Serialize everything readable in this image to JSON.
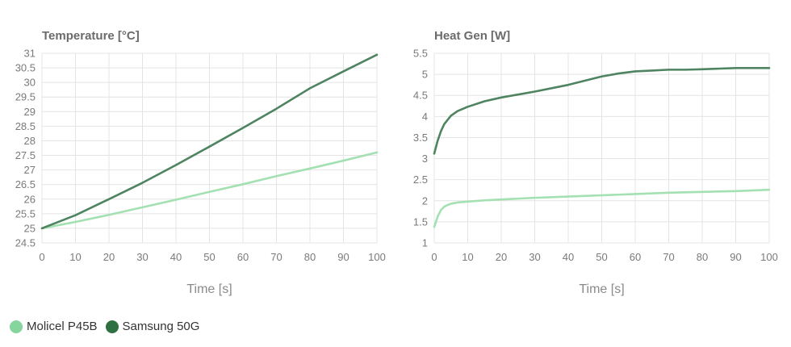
{
  "legend": {
    "items": [
      {
        "label": "Molicel P45B",
        "color": "#86d59c"
      },
      {
        "label": "Samsung 50G",
        "color": "#2e7042"
      }
    ]
  },
  "chart_data": [
    {
      "type": "line",
      "title": "Temperature [°C]",
      "xlabel": "Time [s]",
      "ylabel": "",
      "xlim": [
        0,
        100
      ],
      "ylim": [
        24.5,
        31
      ],
      "xticks": [
        0,
        10,
        20,
        30,
        40,
        50,
        60,
        70,
        80,
        90,
        100
      ],
      "yticks": [
        24.5,
        25,
        25.5,
        26,
        26.5,
        27,
        27.5,
        28,
        28.5,
        29,
        29.5,
        30,
        30.5,
        31
      ],
      "ytick_labels": [
        "24.5",
        "25",
        "25.5",
        "26",
        "26.5",
        "27",
        "27.5",
        "28",
        "28.5",
        "29",
        "29.5",
        "30",
        "30.5",
        "31"
      ],
      "grid": true,
      "series": [
        {
          "name": "Molicel P45B",
          "color": "#a3e0b2",
          "x": [
            0,
            10,
            20,
            30,
            40,
            50,
            60,
            70,
            80,
            90,
            100
          ],
          "y": [
            25.0,
            25.22,
            25.46,
            25.72,
            25.98,
            26.25,
            26.51,
            26.79,
            27.05,
            27.32,
            27.6
          ]
        },
        {
          "name": "Samsung 50G",
          "color": "#4f8460",
          "x": [
            0,
            10,
            20,
            30,
            40,
            50,
            60,
            70,
            80,
            90,
            100
          ],
          "y": [
            25.0,
            25.45,
            26.0,
            26.56,
            27.17,
            27.8,
            28.44,
            29.1,
            29.8,
            30.38,
            30.95
          ]
        }
      ]
    },
    {
      "type": "line",
      "title": "Heat Gen [W]",
      "xlabel": "Time [s]",
      "ylabel": "",
      "xlim": [
        0,
        100
      ],
      "ylim": [
        1,
        5.5
      ],
      "xticks": [
        0,
        10,
        20,
        30,
        40,
        50,
        60,
        70,
        80,
        90,
        100
      ],
      "yticks": [
        1,
        1.5,
        2,
        2.5,
        3,
        3.5,
        4,
        4.5,
        5,
        5.5
      ],
      "ytick_labels": [
        "1",
        "1.5",
        "2",
        "2.5",
        "3",
        "3.5",
        "4",
        "4.5",
        "5",
        "5.5"
      ],
      "grid": true,
      "series": [
        {
          "name": "Molicel P45B",
          "color": "#a3e0b2",
          "x": [
            0,
            0.5,
            1,
            2,
            3,
            4,
            5,
            7,
            10,
            15,
            20,
            30,
            40,
            50,
            60,
            70,
            80,
            90,
            100
          ],
          "y": [
            1.38,
            1.5,
            1.62,
            1.78,
            1.86,
            1.9,
            1.93,
            1.96,
            1.98,
            2.01,
            2.03,
            2.07,
            2.1,
            2.13,
            2.16,
            2.19,
            2.21,
            2.23,
            2.26
          ]
        },
        {
          "name": "Samsung 50G",
          "color": "#4f8460",
          "x": [
            0,
            1,
            2,
            3,
            5,
            7,
            10,
            15,
            20,
            25,
            30,
            40,
            50,
            55,
            60,
            65,
            70,
            75,
            80,
            90,
            100
          ],
          "y": [
            3.12,
            3.42,
            3.65,
            3.82,
            4.02,
            4.13,
            4.23,
            4.36,
            4.45,
            4.52,
            4.59,
            4.75,
            4.95,
            5.02,
            5.07,
            5.09,
            5.11,
            5.11,
            5.12,
            5.15,
            5.15
          ]
        }
      ]
    }
  ]
}
